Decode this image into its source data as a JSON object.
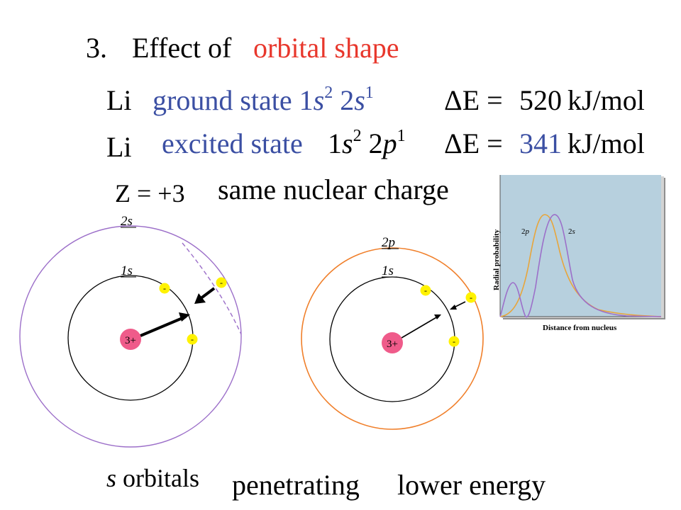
{
  "heading": {
    "number": "3.",
    "prefix": "Effect of",
    "highlight": "orbital shape"
  },
  "row1": {
    "element": "Li",
    "state": "ground state",
    "c1_n": "1",
    "c1_l": "s",
    "c1_e": "2",
    "c2_n": "2",
    "c2_l": "s",
    "c2_e": "1",
    "delta": "ΔE =",
    "value": "520",
    "unit": "kJ/mol"
  },
  "row2": {
    "element": "Li",
    "state": "excited state",
    "c1_n": "1",
    "c1_l": "s",
    "c1_e": "2",
    "c2_n": "2",
    "c2_l": "p",
    "c2_e": "1",
    "delta": "ΔE =",
    "value": "341",
    "unit": "kJ/mol"
  },
  "charge": {
    "z": "Z = +3",
    "text": "same nuclear charge"
  },
  "left_atom": {
    "outer_label": "2s",
    "inner_label": "1s",
    "nucleus": "3+",
    "electron": "-"
  },
  "right_atom": {
    "outer_label": "2p",
    "inner_label": "1s",
    "nucleus": "3+",
    "electron": "-"
  },
  "graph": {
    "ylabel": "Radial probability",
    "xlabel": "Distance from nucleus",
    "label_2p_n": "2",
    "label_2p_l": "p",
    "label_2s_n": "2",
    "label_2s_l": "s"
  },
  "footer": {
    "s_letter": "s",
    "s_rest": " orbitals",
    "penetrating": "penetrating",
    "lower": "lower energy"
  },
  "colors": {
    "red": "#e8372c",
    "blue": "#3b4fa3",
    "purple": "#9c6fc9",
    "orange": "#f07f2a",
    "nucleus": "#ef5b8a",
    "electron": "#fff200",
    "graph_bg": "#b7d0de"
  }
}
